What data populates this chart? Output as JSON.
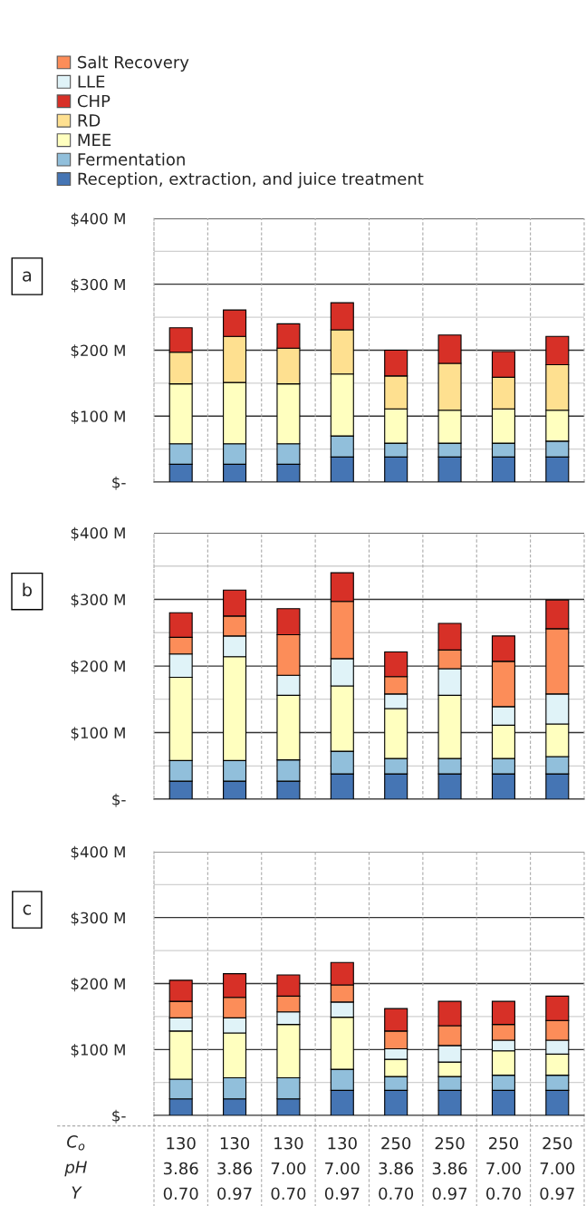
{
  "chart_data": [
    {
      "type": "bar",
      "title": "a",
      "stacked": true,
      "legend": "top",
      "grid": true,
      "tick_labels": "y",
      "categories": [
        null,
        null,
        null,
        null,
        null,
        null,
        null,
        null
      ],
      "ylim": [
        0,
        400
      ],
      "yticks": [
        {
          "value": 0,
          "label": "$-"
        },
        {
          "value": 50,
          "label": null
        },
        {
          "value": 100,
          "label": "$100 M"
        },
        {
          "value": 150,
          "label": null
        },
        {
          "value": 200,
          "label": "$200 M"
        },
        {
          "value": 250,
          "label": null
        },
        {
          "value": 300,
          "label": "$300 M"
        },
        {
          "value": 350,
          "label": null
        },
        {
          "value": 400,
          "label": "$400 M"
        }
      ],
      "series": [
        {
          "name": "Reception, extraction, and juice treatment",
          "color": "#4575b4",
          "values": [
            27,
            27,
            27,
            38,
            38,
            38,
            38,
            38
          ]
        },
        {
          "name": "Fermentation",
          "color": "#91bfdb",
          "values": [
            31,
            31,
            31,
            32,
            21,
            21,
            21,
            24
          ]
        },
        {
          "name": "MEE",
          "color": "#ffffbf",
          "values": [
            91,
            93,
            91,
            94,
            52,
            50,
            52,
            47
          ]
        },
        {
          "name": "RD",
          "color": "#fee090",
          "values": [
            48,
            70,
            54,
            67,
            50,
            71,
            48,
            69
          ]
        },
        {
          "name": "CHP",
          "color": "#d73027",
          "values": [
            37,
            40,
            37,
            41,
            39,
            43,
            39,
            43
          ]
        },
        {
          "name": "LLE",
          "color": "#e0f3f8",
          "values": [
            null,
            null,
            null,
            null,
            null,
            null,
            null,
            null
          ]
        },
        {
          "name": "Salt Recovery",
          "color": "#fc8d59",
          "values": [
            null,
            null,
            null,
            null,
            null,
            null,
            null,
            null
          ]
        }
      ]
    },
    {
      "type": "bar",
      "title": "b",
      "stacked": true,
      "grid": true,
      "tick_labels": "y",
      "categories": [
        null,
        null,
        null,
        null,
        null,
        null,
        null,
        null
      ],
      "ylim": [
        0,
        400
      ],
      "yticks": [
        {
          "value": 0,
          "label": "$-"
        },
        {
          "value": 50,
          "label": null
        },
        {
          "value": 100,
          "label": "$100 M"
        },
        {
          "value": 150,
          "label": null
        },
        {
          "value": 200,
          "label": "$200 M"
        },
        {
          "value": 250,
          "label": null
        },
        {
          "value": 300,
          "label": "$300 M"
        },
        {
          "value": 350,
          "label": null
        },
        {
          "value": 400,
          "label": "$400 M"
        }
      ],
      "series": [
        {
          "color": "#4575b4",
          "values": [
            27,
            27,
            27,
            38,
            38,
            38,
            38,
            38
          ]
        },
        {
          "color": "#91bfdb",
          "values": [
            31,
            31,
            32,
            34,
            23,
            23,
            23,
            26
          ]
        },
        {
          "color": "#ffffbf",
          "values": [
            125,
            156,
            97,
            98,
            75,
            95,
            50,
            49
          ]
        },
        {
          "color": "#e0f3f8",
          "values": [
            35,
            31,
            30,
            41,
            22,
            40,
            28,
            45
          ]
        },
        {
          "color": "#fc8d59",
          "values": [
            25,
            30,
            61,
            86,
            26,
            28,
            68,
            98
          ]
        },
        {
          "color": "#d73027",
          "values": [
            37,
            39,
            39,
            43,
            37,
            40,
            38,
            43
          ]
        }
      ]
    },
    {
      "type": "bar",
      "title": "c",
      "stacked": true,
      "grid": true,
      "categories": [
        "130\n3.86\n0.70",
        "130\n3.86\n0.97",
        "130\n7.00\n0.70",
        "130\n7.00\n0.97",
        "250\n3.86\n0.70",
        "250\n3.86\n0.97",
        "250\n7.00\n0.70",
        "250\n7.00\n0.97"
      ],
      "ylim": [
        0,
        400
      ],
      "yticks": [
        {
          "value": 0,
          "label": "$-"
        },
        {
          "value": 50,
          "label": null
        },
        {
          "value": 100,
          "label": "$100 M"
        },
        {
          "value": 150,
          "label": null
        },
        {
          "value": 200,
          "label": "$200 M"
        },
        {
          "value": 250,
          "label": null
        },
        {
          "value": 300,
          "label": "$300 M"
        },
        {
          "value": 350,
          "label": null
        },
        {
          "value": 400,
          "label": "$400 M"
        }
      ],
      "annotations": [
        "C$_{o}$",
        "pH",
        "Y"
      ],
      "series": [
        {
          "color": "#4575b4",
          "values": [
            25,
            25,
            25,
            38,
            38,
            38,
            38,
            38
          ]
        },
        {
          "color": "#91bfdb",
          "values": [
            30,
            32,
            32,
            32,
            21,
            21,
            23,
            23
          ]
        },
        {
          "color": "#ffffbf",
          "values": [
            73,
            68,
            81,
            79,
            26,
            22,
            37,
            32
          ]
        },
        {
          "color": "#e0f3f8",
          "values": [
            20,
            23,
            19,
            23,
            16,
            25,
            16,
            21
          ]
        },
        {
          "color": "#fc8d59",
          "values": [
            25,
            31,
            24,
            26,
            27,
            30,
            24,
            30
          ]
        },
        {
          "color": "#d73027",
          "values": [
            32,
            36,
            32,
            34,
            34,
            37,
            35,
            37
          ]
        }
      ]
    }
  ]
}
